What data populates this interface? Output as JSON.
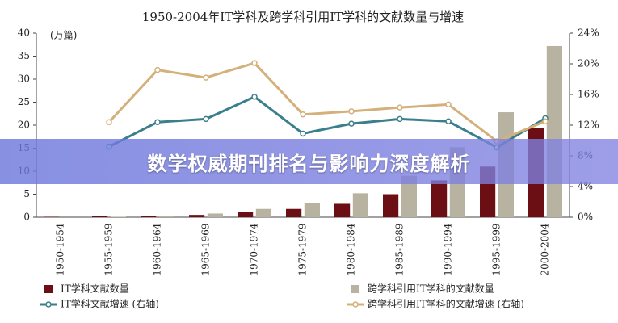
{
  "chart_data": {
    "type": "bar-line",
    "title": "1950-2004年IT学科及跨学科引用IT学科的文献数量与增速",
    "y_label": "(万篇)",
    "categories": [
      "1950-1954",
      "1955-1959",
      "1960-1964",
      "1965-1969",
      "1970-1974",
      "1975-1979",
      "1980-1984",
      "1985-1989",
      "1990-1994",
      "1995-1999",
      "2000-2004"
    ],
    "series": [
      {
        "name": "IT学科文献数量",
        "type": "bar",
        "color": "#6b0f14",
        "values": [
          0.1,
          0.2,
          0.3,
          0.5,
          1.1,
          1.8,
          2.9,
          5,
          8,
          11,
          19.4
        ]
      },
      {
        "name": "跨学科引用IT学科的文献数量",
        "type": "bar",
        "color": "#b8b3a0",
        "values": [
          0,
          0.1,
          0.3,
          0.8,
          1.8,
          3,
          5.2,
          9,
          15.2,
          22.8,
          37.2
        ]
      },
      {
        "name": "IT学科文献增速 (右轴)",
        "type": "line",
        "axis": "y2",
        "color": "#3a7f8c",
        "values": [
          null,
          9.2,
          12.4,
          12.8,
          15.7,
          10.9,
          12.2,
          12.8,
          12.5,
          9.1,
          12.9
        ]
      },
      {
        "name": "跨学科引用IT学科的文献增速 (右轴)",
        "type": "line",
        "axis": "y2",
        "color": "#d4b07a",
        "values": [
          null,
          12.4,
          19.2,
          18.2,
          20.1,
          13.4,
          13.8,
          14.3,
          14.7,
          9.9,
          12.5
        ]
      }
    ],
    "ylim": [
      0,
      40
    ],
    "yticks": [
      0,
      5,
      10,
      15,
      20,
      25,
      30,
      35,
      40
    ],
    "y2lim": [
      0,
      24
    ],
    "y2ticks": [
      {
        "value": 0,
        "label": "0%"
      },
      {
        "value": 4,
        "label": "4%"
      },
      {
        "value": 8,
        "label": "8%"
      },
      {
        "value": 12,
        "label": "12%"
      },
      {
        "value": 16,
        "label": "16%"
      },
      {
        "value": 20,
        "label": "20%"
      },
      {
        "value": 24,
        "label": "24%"
      }
    ],
    "grid": false
  },
  "banner": {
    "title": "数学权威期刊排名与影响力深度解析"
  }
}
